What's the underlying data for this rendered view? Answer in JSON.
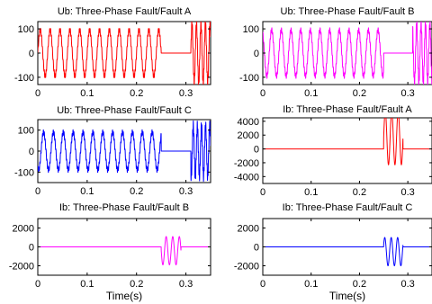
{
  "chart_data": [
    {
      "type": "line",
      "title": "Ub: Three-Phase Fault/Fault A",
      "xlim": [
        0,
        0.35
      ],
      "ylim": [
        -130,
        130
      ],
      "xticks": [
        0,
        0.1,
        0.2,
        0.3
      ],
      "xtick_labels": [
        "0",
        "0.1",
        "0.2",
        "0.3"
      ],
      "yticks": [
        100,
        0,
        -100
      ],
      "ytick_labels": [
        "100",
        "0",
        "-100"
      ],
      "xlabel": "",
      "series": [
        {
          "color": "#ff0000",
          "segments": [
            {
              "t0": 0,
              "t1": 0.25,
              "shape": "sine",
              "freq": 50,
              "amp": 95,
              "ripple_amp": 10,
              "ripple_freq": 550
            },
            {
              "t0": 0.25,
              "t1": 0.31,
              "shape": "flat",
              "level": 0
            },
            {
              "t0": 0.31,
              "t1": 0.35,
              "shape": "sine",
              "freq": 110,
              "amp": 120,
              "ripple_amp": 20,
              "ripple_freq": 700
            }
          ]
        }
      ]
    },
    {
      "type": "line",
      "title": "Ub: Three-Phase Fault/Fault B",
      "xlim": [
        0,
        0.35
      ],
      "ylim": [
        -130,
        130
      ],
      "xticks": [
        0,
        0.1,
        0.2,
        0.3
      ],
      "xtick_labels": [
        "0",
        "0.1",
        "0.2",
        "0.3"
      ],
      "yticks": [
        100,
        0,
        -100
      ],
      "ytick_labels": [
        "100",
        "0",
        "-100"
      ],
      "xlabel": "",
      "series": [
        {
          "color": "#ff00ff",
          "segments": [
            {
              "t0": 0,
              "t1": 0.25,
              "shape": "sine",
              "freq": 50,
              "amp": 95,
              "ripple_amp": 10,
              "ripple_freq": 550,
              "phase": 2.09
            },
            {
              "t0": 0.25,
              "t1": 0.31,
              "shape": "flat",
              "level": 0
            },
            {
              "t0": 0.31,
              "t1": 0.35,
              "shape": "sine",
              "freq": 110,
              "amp": 120,
              "ripple_amp": 20,
              "ripple_freq": 700,
              "phase": 2.09
            }
          ]
        }
      ]
    },
    {
      "type": "line",
      "title": "Ub: Three-Phase Fault/Fault C",
      "xlim": [
        0,
        0.35
      ],
      "ylim": [
        -150,
        150
      ],
      "xticks": [
        0,
        0.1,
        0.2,
        0.3
      ],
      "xtick_labels": [
        "0",
        "0.1",
        "0.2",
        "0.3"
      ],
      "yticks": [
        100,
        0,
        -100
      ],
      "ytick_labels": [
        "100",
        "0",
        "-100"
      ],
      "xlabel": "",
      "series": [
        {
          "color": "#0000ff",
          "segments": [
            {
              "t0": 0,
              "t1": 0.25,
              "shape": "sine",
              "freq": 50,
              "amp": 90,
              "ripple_amp": 12,
              "ripple_freq": 550,
              "phase": 4.19
            },
            {
              "t0": 0.25,
              "t1": 0.31,
              "shape": "flat",
              "level": 0
            },
            {
              "t0": 0.31,
              "t1": 0.35,
              "shape": "sine",
              "freq": 120,
              "amp": 120,
              "ripple_amp": 25,
              "ripple_freq": 750,
              "phase": 4.19
            }
          ]
        }
      ]
    },
    {
      "type": "line",
      "title": "Ib: Three-Phase Fault/Fault A",
      "xlim": [
        0,
        0.35
      ],
      "ylim": [
        -5000,
        4500
      ],
      "xticks": [
        0,
        0.1,
        0.2,
        0.3
      ],
      "xtick_labels": [
        "0",
        "0.1",
        "0.2",
        "0.3"
      ],
      "yticks": [
        4000,
        2000,
        0,
        -2000,
        -4000
      ],
      "ytick_labels": [
        "4000",
        "2000",
        "0",
        "-2000",
        "-4000"
      ],
      "xlabel": "",
      "series": [
        {
          "color": "#ff0000",
          "segments": [
            {
              "t0": 0,
              "t1": 0.25,
              "shape": "flat",
              "level": 0
            },
            {
              "t0": 0.25,
              "t1": 0.29,
              "shape": "sine",
              "freq": 75,
              "amp": 3900,
              "offset": 1600
            },
            {
              "t0": 0.29,
              "t1": 0.35,
              "shape": "flat",
              "level": 0
            }
          ]
        }
      ]
    },
    {
      "type": "line",
      "title": "Ib: Three-Phase Fault/Fault B",
      "xlim": [
        0,
        0.35
      ],
      "ylim": [
        -3000,
        3000
      ],
      "xticks": [
        0,
        0.1,
        0.2,
        0.3
      ],
      "xtick_labels": [
        "0",
        "0.1",
        "0.2",
        "0.3"
      ],
      "yticks": [
        2000,
        0,
        -2000
      ],
      "ytick_labels": [
        "2000",
        "0",
        "-2000"
      ],
      "xlabel": "Time(s)",
      "series": [
        {
          "color": "#ff00ff",
          "segments": [
            {
              "t0": 0,
              "t1": 0.25,
              "shape": "flat",
              "level": 0
            },
            {
              "t0": 0.25,
              "t1": 0.29,
              "shape": "sine",
              "freq": 75,
              "amp": 1500,
              "phase": 3.14,
              "offset": -400
            },
            {
              "t0": 0.29,
              "t1": 0.35,
              "shape": "flat",
              "level": 0
            }
          ]
        }
      ]
    },
    {
      "type": "line",
      "title": "Ib: Three-Phase Fault/Fault C",
      "xlim": [
        0,
        0.35
      ],
      "ylim": [
        -3000,
        3000
      ],
      "xticks": [
        0,
        0.1,
        0.2,
        0.3
      ],
      "xtick_labels": [
        "0",
        "0.1",
        "0.2",
        "0.3"
      ],
      "yticks": [
        2000,
        0,
        -2000
      ],
      "ytick_labels": [
        "2000",
        "0",
        "-2000"
      ],
      "xlabel": "Time(s)",
      "series": [
        {
          "color": "#0000ff",
          "segments": [
            {
              "t0": 0,
              "t1": 0.25,
              "shape": "flat",
              "level": 0
            },
            {
              "t0": 0.25,
              "t1": 0.29,
              "shape": "sine",
              "freq": 75,
              "amp": 1500,
              "phase": 0.5,
              "offset": -500
            },
            {
              "t0": 0.29,
              "t1": 0.35,
              "shape": "flat",
              "level": 0
            }
          ]
        }
      ]
    }
  ]
}
